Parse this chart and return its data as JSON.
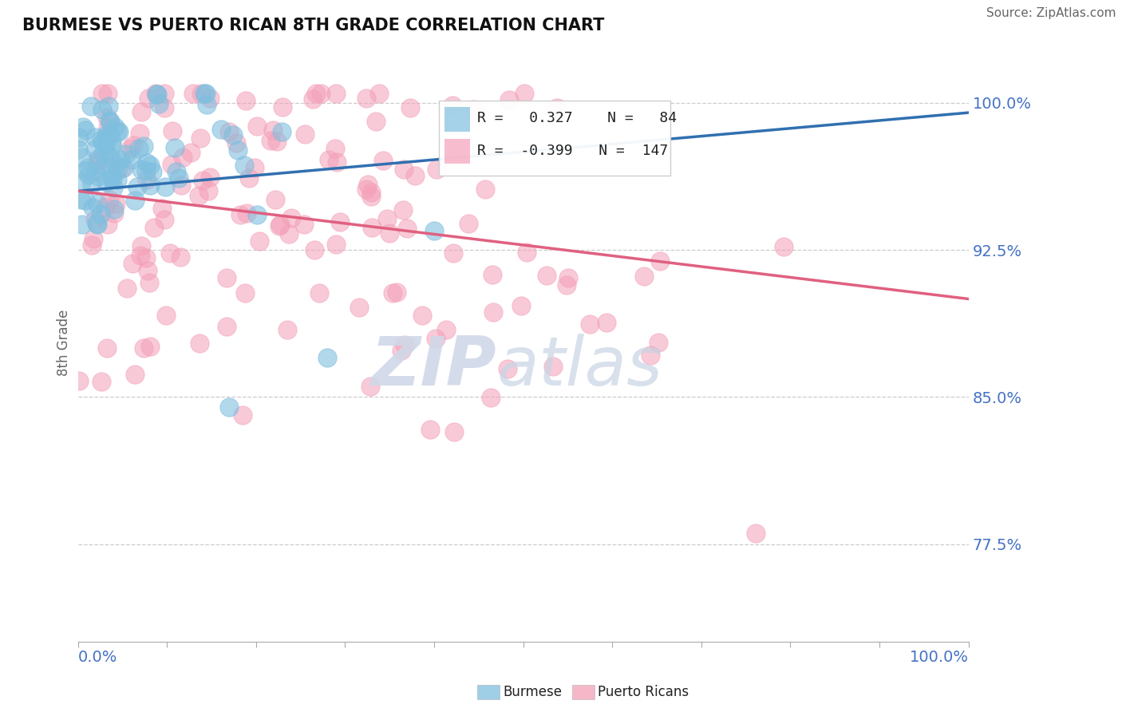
{
  "title": "BURMESE VS PUERTO RICAN 8TH GRADE CORRELATION CHART",
  "source": "Source: ZipAtlas.com",
  "ylabel": "8th Grade",
  "legend_blue": "Burmese",
  "legend_pink": "Puerto Ricans",
  "R_blue": 0.327,
  "N_blue": 84,
  "R_pink": -0.399,
  "N_pink": 147,
  "blue_color": "#7fbfdf",
  "pink_color": "#f4a0b8",
  "blue_line_color": "#3070b0",
  "pink_line_color": "#e06080",
  "watermark_top": "ZIP",
  "watermark_bot": "atlas",
  "xlim": [
    0.0,
    1.0
  ],
  "ylim": [
    0.725,
    1.03
  ],
  "yticks": [
    0.775,
    0.85,
    0.925,
    1.0
  ],
  "ytick_labels": [
    "77.5%",
    "85.0%",
    "92.5%",
    "100.0%"
  ],
  "background_color": "#ffffff",
  "blue_line_x0": 0.0,
  "blue_line_y0": 0.955,
  "blue_line_x1": 1.0,
  "blue_line_y1": 0.995,
  "pink_line_x0": 0.0,
  "pink_line_y0": 0.955,
  "pink_line_x1": 1.0,
  "pink_line_y1": 0.9
}
